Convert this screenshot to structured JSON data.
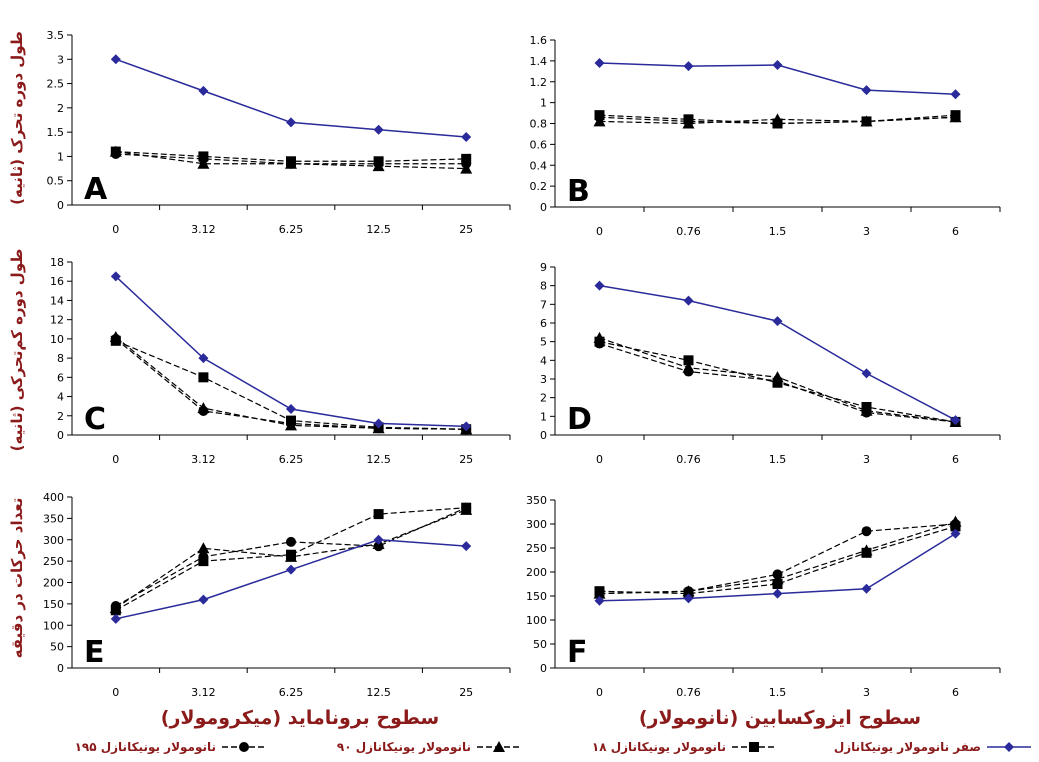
{
  "colors": {
    "control": "#2a2a9a",
    "treated": "#000000",
    "ylabel": "#8b1a1a",
    "xlabel": "#8b1a1a",
    "legend": "#8b1a1a"
  },
  "ylabels": {
    "top": "طول دوره تحرک (ثانیه)",
    "middle": "طول دوره کم‌تحرکی (ثانیه)",
    "bottom": "تعداد حرکات در دقیقه"
  },
  "xlabels": {
    "left": "سطوح برونامايد (میکرومولار)",
    "right": "سطوح ایزوکسابین (نانومولار)"
  },
  "legend": {
    "items": [
      {
        "label": "صفر نانومولار یونیکانازل",
        "marker": "diamond",
        "dashed": false,
        "color": "#2a2a9a"
      },
      {
        "label": "۱۸ نانومولار یونیکانازل",
        "marker": "square",
        "dashed": true,
        "color": "#000000"
      },
      {
        "label": "۹۰ نانومولار یونیکانازل",
        "marker": "triangle",
        "dashed": true,
        "color": "#000000"
      },
      {
        "label": "۱۹۵ نانومولار یونیکانازل",
        "marker": "circle",
        "dashed": true,
        "color": "#000000"
      }
    ]
  },
  "chart_data": [
    {
      "type": "line",
      "panel": "A",
      "categories": [
        "0",
        "3.12",
        "6.25",
        "12.5",
        "25"
      ],
      "ylim": [
        0,
        3.5
      ],
      "yticks": [
        "0",
        "0.5",
        "1",
        "1.5",
        "2",
        "2.5",
        "3",
        "3.5"
      ],
      "series": [
        {
          "marker": "diamond",
          "values": [
            3.0,
            2.35,
            1.7,
            1.55,
            1.4
          ]
        },
        {
          "marker": "square",
          "values": [
            1.1,
            1.0,
            0.9,
            0.9,
            0.95
          ]
        },
        {
          "marker": "triangle",
          "values": [
            1.1,
            0.85,
            0.85,
            0.8,
            0.75
          ]
        },
        {
          "marker": "circle",
          "values": [
            1.05,
            0.95,
            0.85,
            0.85,
            0.85
          ]
        }
      ]
    },
    {
      "type": "line",
      "panel": "B",
      "categories": [
        "0",
        "0.76",
        "1.5",
        "3",
        "6"
      ],
      "ylim": [
        0,
        1.6
      ],
      "yticks": [
        "0",
        "0.2",
        "0.4",
        "0.6",
        "0.8",
        "1",
        "1.2",
        "1.4",
        "1.6"
      ],
      "series": [
        {
          "marker": "diamond",
          "values": [
            1.38,
            1.35,
            1.36,
            1.12,
            1.08
          ]
        },
        {
          "marker": "square",
          "values": [
            0.88,
            0.84,
            0.8,
            0.82,
            0.88
          ]
        },
        {
          "marker": "triangle",
          "values": [
            0.82,
            0.8,
            0.84,
            0.82,
            0.86
          ]
        },
        {
          "marker": "circle",
          "values": [
            0.86,
            0.82,
            0.8,
            0.82,
            0.86
          ]
        }
      ]
    },
    {
      "type": "line",
      "panel": "C",
      "categories": [
        "0",
        "3.12",
        "6.25",
        "12.5",
        "25"
      ],
      "ylim": [
        0,
        18
      ],
      "yticks": [
        "0",
        "2",
        "4",
        "6",
        "8",
        "10",
        "12",
        "14",
        "16",
        "18"
      ],
      "series": [
        {
          "marker": "diamond",
          "values": [
            16.5,
            8.0,
            2.7,
            1.2,
            0.9
          ]
        },
        {
          "marker": "square",
          "values": [
            9.8,
            6.0,
            1.5,
            0.8,
            0.6
          ]
        },
        {
          "marker": "triangle",
          "values": [
            10.2,
            2.8,
            1.0,
            0.7,
            0.6
          ]
        },
        {
          "marker": "circle",
          "values": [
            10.0,
            2.5,
            1.2,
            0.7,
            0.6
          ]
        }
      ]
    },
    {
      "type": "line",
      "panel": "D",
      "categories": [
        "0",
        "0.76",
        "1.5",
        "3",
        "6"
      ],
      "ylim": [
        0,
        9
      ],
      "yticks": [
        "0",
        "1",
        "2",
        "3",
        "4",
        "5",
        "6",
        "7",
        "8",
        "9"
      ],
      "series": [
        {
          "marker": "diamond",
          "values": [
            8.0,
            7.2,
            6.1,
            3.3,
            0.8
          ]
        },
        {
          "marker": "square",
          "values": [
            5.0,
            4.0,
            2.8,
            1.5,
            0.7
          ]
        },
        {
          "marker": "triangle",
          "values": [
            5.2,
            3.6,
            3.1,
            1.3,
            0.7
          ]
        },
        {
          "marker": "circle",
          "values": [
            4.9,
            3.4,
            2.9,
            1.2,
            0.7
          ]
        }
      ]
    },
    {
      "type": "line",
      "panel": "E",
      "categories": [
        "0",
        "3.12",
        "6.25",
        "12.5",
        "25"
      ],
      "ylim": [
        0,
        400
      ],
      "yticks": [
        "0",
        "50",
        "100",
        "150",
        "200",
        "250",
        "300",
        "350",
        "400"
      ],
      "series": [
        {
          "marker": "diamond",
          "values": [
            115,
            160,
            230,
            300,
            285
          ]
        },
        {
          "marker": "square",
          "values": [
            135,
            250,
            265,
            360,
            375
          ]
        },
        {
          "marker": "triangle",
          "values": [
            140,
            280,
            260,
            290,
            370
          ]
        },
        {
          "marker": "circle",
          "values": [
            145,
            260,
            295,
            285,
            375
          ]
        }
      ]
    },
    {
      "type": "line",
      "panel": "F",
      "categories": [
        "0",
        "0.76",
        "1.5",
        "3",
        "6"
      ],
      "ylim": [
        0,
        350
      ],
      "yticks": [
        "0",
        "50",
        "100",
        "150",
        "200",
        "250",
        "300",
        "350"
      ],
      "series": [
        {
          "marker": "diamond",
          "values": [
            140,
            145,
            155,
            165,
            280
          ]
        },
        {
          "marker": "square",
          "values": [
            160,
            155,
            175,
            240,
            295
          ]
        },
        {
          "marker": "triangle",
          "values": [
            155,
            160,
            185,
            245,
            305
          ]
        },
        {
          "marker": "circle",
          "values": [
            155,
            160,
            195,
            285,
            300
          ]
        }
      ]
    }
  ]
}
